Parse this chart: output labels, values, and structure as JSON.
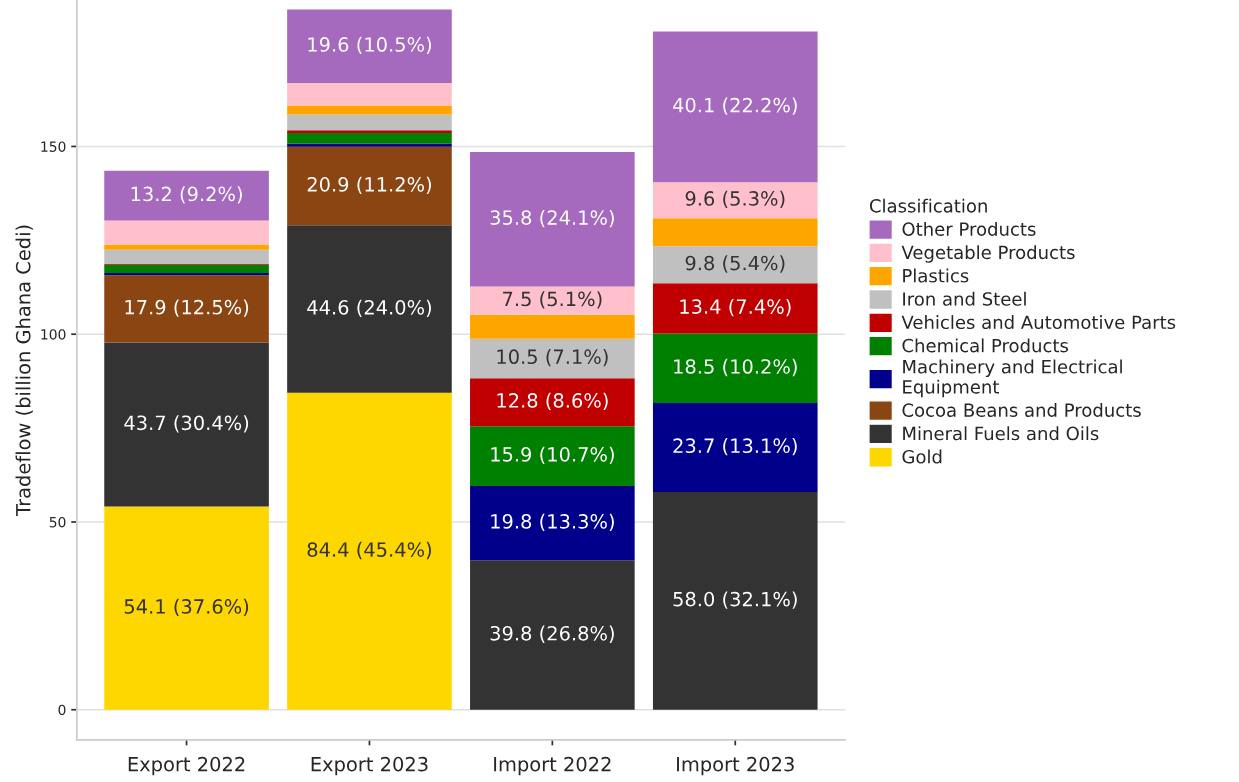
{
  "chart_data": {
    "type": "bar",
    "stacked": true,
    "ylabel": "Tradeflow (billion Ghana Cedi)",
    "legend_title": "Classification",
    "legend": "right",
    "grid": "y",
    "categories": [
      "Export 2022",
      "Export 2023",
      "Import 2022",
      "Import 2023"
    ],
    "ylim": [
      -8,
      189
    ],
    "yticks": [
      0,
      50,
      100,
      150
    ],
    "series": [
      {
        "name": "Gold",
        "color": "#ffd700",
        "values": [
          54.1,
          84.4,
          null,
          null
        ],
        "value_labels": [
          "54.1 (37.6%)",
          "84.4 (45.4%)",
          null,
          null
        ]
      },
      {
        "name": "Mineral Fuels and Oils",
        "color": "#333333",
        "values": [
          43.7,
          44.6,
          39.8,
          58.0
        ],
        "value_labels": [
          "43.7 (30.4%)",
          "44.6 (24.0%)",
          "39.8 (26.8%)",
          "58.0 (32.1%)"
        ]
      },
      {
        "name": "Cocoa Beans and Products",
        "color": "#8b4513",
        "values": [
          17.9,
          20.9,
          null,
          null
        ],
        "value_labels": [
          "17.9 (12.5%)",
          "20.9 (11.2%)",
          null,
          null
        ]
      },
      {
        "name": "Machinery and Electrical\nEquipment",
        "color": "#00008b",
        "values": [
          0.6,
          0.9,
          19.8,
          23.7
        ],
        "value_labels": [
          null,
          null,
          "19.8 (13.3%)",
          "23.7 (13.1%)"
        ]
      },
      {
        "name": "Chemical Products",
        "color": "#008000",
        "values": [
          2.2,
          2.8,
          15.9,
          18.5
        ],
        "value_labels": [
          null,
          null,
          "15.9 (10.7%)",
          "18.5 (10.2%)"
        ]
      },
      {
        "name": "Vehicles and Automotive Parts",
        "color": "#c00000",
        "values": [
          0.2,
          0.7,
          12.8,
          13.4
        ],
        "value_labels": [
          null,
          null,
          "12.8 (8.6%)",
          "13.4 (7.4%)"
        ]
      },
      {
        "name": "Iron and Steel",
        "color": "#c0c0c0",
        "values": [
          3.8,
          4.2,
          10.5,
          9.8
        ],
        "value_labels": [
          null,
          null,
          "10.5 (7.1%)",
          "9.8 (5.4%)"
        ]
      },
      {
        "name": "Plastics",
        "color": "#ffa500",
        "values": [
          1.4,
          2.4,
          6.4,
          7.5
        ],
        "value_labels": [
          null,
          null,
          null,
          null
        ]
      },
      {
        "name": "Vegetable Products",
        "color": "#ffc0cb",
        "values": [
          6.4,
          6.0,
          7.5,
          9.6
        ],
        "value_labels": [
          null,
          null,
          "7.5 (5.1%)",
          "9.6 (5.3%)"
        ]
      },
      {
        "name": "Other Products",
        "color": "#a569bd",
        "values": [
          13.2,
          19.6,
          35.8,
          40.1
        ],
        "value_labels": [
          "13.2 (9.2%)",
          "19.6 (10.5%)",
          "35.8 (24.1%)",
          "40.1 (22.2%)"
        ]
      }
    ]
  }
}
